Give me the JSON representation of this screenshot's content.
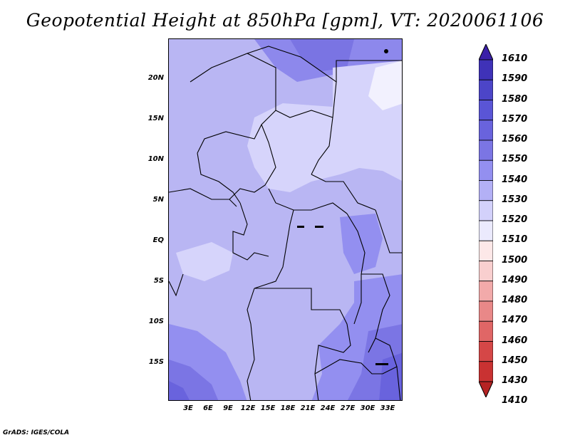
{
  "title": "Geopotential Height at 850hPa [gpm], VT: 2020061106",
  "credit": "GrADS: IGES/COLA",
  "map": {
    "y_ticks": [
      "20N",
      "15N",
      "10N",
      "5N",
      "EQ",
      "5S",
      "10S",
      "15S"
    ],
    "x_ticks": [
      "3E",
      "6E",
      "9E",
      "12E",
      "15E",
      "18E",
      "21E",
      "24E",
      "27E",
      "30E",
      "33E"
    ]
  },
  "colorbar": {
    "labels": [
      "1610",
      "1590",
      "1580",
      "1570",
      "1560",
      "1550",
      "1540",
      "1530",
      "1520",
      "1510",
      "1500",
      "1490",
      "1480",
      "1470",
      "1460",
      "1450",
      "1430",
      "1410"
    ],
    "colors": [
      "#3a1fa8",
      "#3f32b8",
      "#4c45c8",
      "#5a55d6",
      "#6963dd",
      "#7b75e4",
      "#938ff0",
      "#b3b0f6",
      "#d3d1fb",
      "#ebeafd",
      "#fde8e8",
      "#f9cfcf",
      "#f2aaaa",
      "#e98888",
      "#e06666",
      "#d54747",
      "#c93232",
      "#b52323"
    ]
  }
}
